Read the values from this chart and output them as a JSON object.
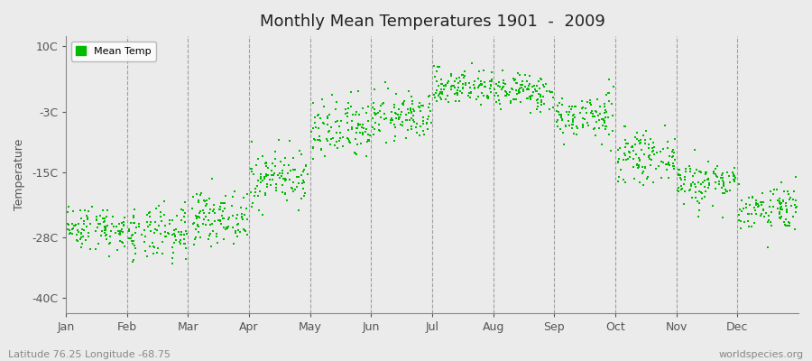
{
  "title": "Monthly Mean Temperatures 1901  -  2009",
  "ylabel": "Temperature",
  "yticks": [
    10,
    -3,
    -15,
    -28,
    -40
  ],
  "ytick_labels": [
    "10C",
    "-3C",
    "-15C",
    "-28C",
    "-40C"
  ],
  "ylim": [
    -43,
    12
  ],
  "months": [
    "Jan",
    "Feb",
    "Mar",
    "Apr",
    "May",
    "Jun",
    "Jul",
    "Aug",
    "Sep",
    "Oct",
    "Nov",
    "Dec"
  ],
  "monthly_means": [
    -26,
    -27.5,
    -24,
    -16,
    -7,
    -4,
    2,
    1,
    -4,
    -12,
    -17,
    -22
  ],
  "monthly_stds": [
    2.2,
    2.8,
    2.5,
    2.8,
    3.2,
    2.3,
    1.8,
    1.8,
    2.3,
    2.3,
    2.3,
    2.3
  ],
  "n_years": 109,
  "dot_color": "#00BB00",
  "dot_size": 2.5,
  "background_color": "#EBEBEB",
  "grid_color": "#777777",
  "footer_left": "Latitude 76.25 Longitude -68.75",
  "footer_right": "worldspecies.org",
  "legend_label": "Mean Temp"
}
